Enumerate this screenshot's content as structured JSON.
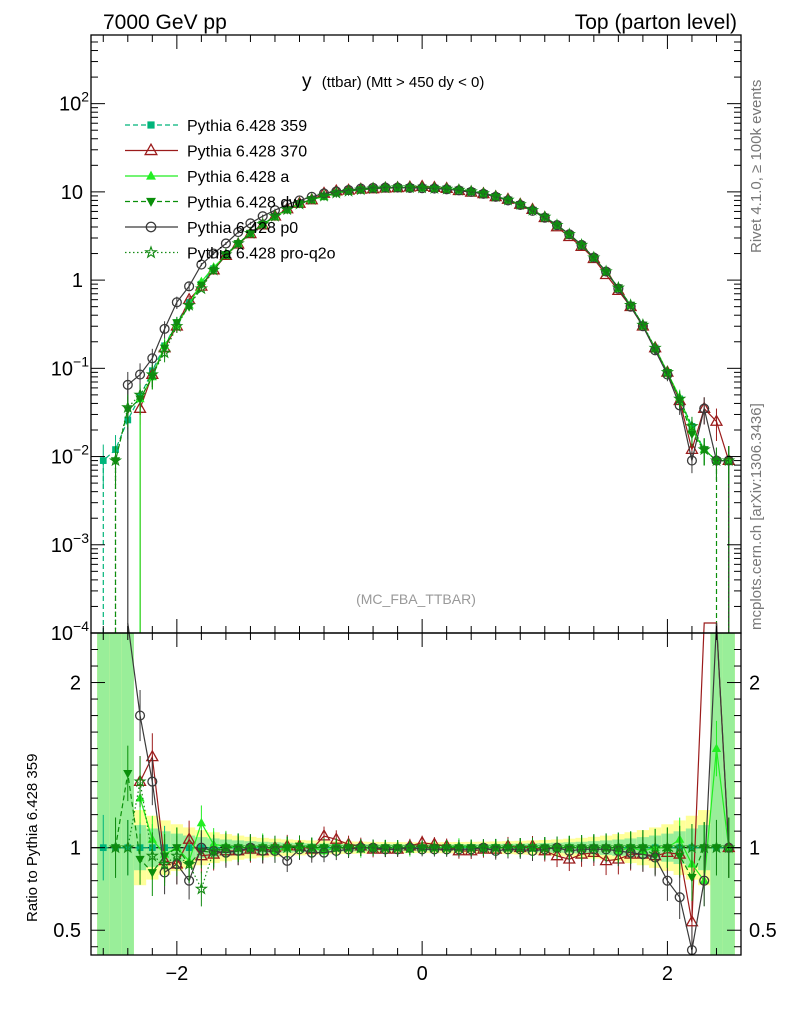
{
  "header": {
    "left": "7000 GeV pp",
    "right": "Top (parton level)"
  },
  "side_text": {
    "rivet": "Rivet 4.1.0, ≥ 100k events",
    "source": "mcplots.cern.ch [arXiv:1306.3436]"
  },
  "chart_data": {
    "type": "line",
    "title_main": "y",
    "title_sub": "(ttbar) (Mtt > 450 dy < 0)",
    "watermark": "(MC_FBA_TTBAR)",
    "xlabel": "",
    "x_ticks": [
      "−2",
      "0",
      "2"
    ],
    "xlim": [
      -2.7,
      2.6
    ],
    "upper": {
      "yscale": "log",
      "ylim": [
        0.0001,
        600
      ],
      "y_ticks": [
        {
          "value": 100,
          "label": "10",
          "exp": "2"
        },
        {
          "value": 10,
          "label": "10",
          "exp": ""
        },
        {
          "value": 1,
          "label": "1",
          "exp": ""
        },
        {
          "value": 0.1,
          "label": "10",
          "exp": "−1"
        },
        {
          "value": 0.01,
          "label": "10",
          "exp": "−2"
        },
        {
          "value": 0.001,
          "label": "10",
          "exp": "−3"
        },
        {
          "value": 0.0001,
          "label": "10",
          "exp": "−4"
        }
      ]
    },
    "ratio": {
      "ylabel": "Ratio to Pythia 6.428 359",
      "ylim": [
        0.35,
        2.3
      ],
      "y_ticks": [
        {
          "value": 0.5,
          "label": "0.5"
        },
        {
          "value": 1,
          "label": "1"
        },
        {
          "value": 2,
          "label": "2"
        }
      ]
    },
    "series": [
      {
        "name": "Pythia 6.428 359",
        "color": "#00b47a",
        "dash": "5,3",
        "marker": "square",
        "x": [
          -2.6,
          -2.5,
          -2.4,
          -2.3,
          -2.2,
          -2.1,
          -2.0,
          -1.9,
          -1.8,
          -1.7,
          -1.6,
          -1.5,
          -1.4,
          -1.3,
          -1.2,
          -1.1,
          -1.0,
          -0.9,
          -0.8,
          -0.7,
          -0.6,
          -0.5,
          -0.4,
          -0.3,
          -0.2,
          -0.1,
          0.0,
          0.1,
          0.2,
          0.3,
          0.4,
          0.5,
          0.6,
          0.7,
          0.8,
          0.9,
          1.0,
          1.1,
          1.2,
          1.3,
          1.4,
          1.5,
          1.6,
          1.7,
          1.8,
          1.9,
          2.0,
          2.1,
          2.2,
          2.3,
          2.4,
          2.5
        ],
        "values": [
          0.009,
          0.012,
          0.026,
          0.048,
          0.094,
          0.18,
          0.33,
          0.56,
          0.9,
          1.35,
          1.95,
          2.6,
          3.4,
          4.3,
          5.3,
          6.3,
          7.3,
          8.2,
          9.0,
          9.7,
          10.2,
          10.6,
          10.9,
          11.1,
          11.2,
          11.2,
          11.1,
          11.0,
          10.8,
          10.5,
          10.1,
          9.6,
          8.9,
          8.1,
          7.2,
          6.2,
          5.2,
          4.2,
          3.3,
          2.5,
          1.8,
          1.25,
          0.82,
          0.52,
          0.31,
          0.17,
          0.09,
          0.045,
          0.022,
          0.012,
          0.009,
          0.009
        ],
        "ratio": [
          1,
          1,
          1,
          1,
          1,
          1,
          1,
          1,
          1,
          1,
          1,
          1,
          1,
          1,
          1,
          1,
          1,
          1,
          1,
          1,
          1,
          1,
          1,
          1,
          1,
          1,
          1,
          1,
          1,
          1,
          1,
          1,
          1,
          1,
          1,
          1,
          1,
          1,
          1,
          1,
          1,
          1,
          1,
          1,
          1,
          1,
          1,
          1,
          1,
          1,
          1,
          1
        ]
      },
      {
        "name": "Pythia 6.428 370",
        "color": "#9b1b1b",
        "dash": "",
        "marker": "triangle-open",
        "x": [
          -2.3,
          -2.2,
          -2.1,
          -2.0,
          -1.9,
          -1.8,
          -1.7,
          -1.6,
          -1.5,
          -1.4,
          -1.3,
          -1.2,
          -1.1,
          -1.0,
          -0.9,
          -0.8,
          -0.7,
          -0.6,
          -0.5,
          -0.4,
          -0.3,
          -0.2,
          -0.1,
          0.0,
          0.1,
          0.2,
          0.3,
          0.4,
          0.5,
          0.6,
          0.7,
          0.8,
          0.9,
          1.0,
          1.1,
          1.2,
          1.3,
          1.4,
          1.5,
          1.6,
          1.7,
          1.8,
          1.9,
          2.0,
          2.1,
          2.2,
          2.3,
          2.4,
          2.5
        ],
        "values": [
          0.035,
          0.085,
          0.17,
          0.3,
          0.6,
          0.85,
          1.3,
          1.9,
          2.55,
          3.35,
          4.2,
          5.3,
          6.4,
          7.4,
          8.1,
          9.6,
          10.2,
          10.4,
          10.7,
          10.8,
          11.0,
          11.1,
          11.3,
          11.5,
          11.2,
          10.9,
          10.3,
          9.9,
          9.5,
          8.8,
          8.2,
          7.2,
          6.3,
          5.1,
          4.0,
          3.1,
          2.4,
          1.75,
          1.15,
          0.76,
          0.5,
          0.3,
          0.17,
          0.09,
          0.043,
          0.012,
          0.035,
          0.025,
          0.009
        ],
        "ratio": [
          1.4,
          1.55,
          0.92,
          0.9,
          1.05,
          0.95,
          0.96,
          0.98,
          0.98,
          0.99,
          0.98,
          1.0,
          1.01,
          1.01,
          0.99,
          1.07,
          1.05,
          1.02,
          1.01,
          0.99,
          0.99,
          0.99,
          1.01,
          1.03,
          1.02,
          1.01,
          0.98,
          0.98,
          0.99,
          0.99,
          1.01,
          1.0,
          1.01,
          0.98,
          0.95,
          0.93,
          0.96,
          0.97,
          0.92,
          0.93,
          0.96,
          0.96,
          0.95,
          0.97,
          0.96,
          0.55,
          2.9,
          2.8,
          1.0
        ]
      },
      {
        "name": "Pythia 6.428 a",
        "color": "#22ee22",
        "dash": "",
        "marker": "triangle",
        "x": [
          -2.3,
          -2.2,
          -2.1,
          -2.0,
          -1.9,
          -1.8,
          -1.7,
          -1.6,
          -1.5,
          -1.4,
          -1.3,
          -1.2,
          -1.1,
          -1.0,
          -0.9,
          -0.8,
          -0.7,
          -0.6,
          -0.5,
          -0.4,
          -0.3,
          -0.2,
          -0.1,
          0.0,
          0.1,
          0.2,
          0.3,
          0.4,
          0.5,
          0.6,
          0.7,
          0.8,
          0.9,
          1.0,
          1.1,
          1.2,
          1.3,
          1.4,
          1.5,
          1.6,
          1.7,
          1.8,
          1.9,
          2.0,
          2.1,
          2.2,
          2.3,
          2.4,
          2.5
        ],
        "values": [
          0.045,
          0.08,
          0.18,
          0.31,
          0.52,
          0.96,
          1.4,
          1.9,
          2.6,
          3.4,
          4.3,
          5.2,
          6.3,
          7.4,
          8.2,
          8.8,
          9.7,
          10.2,
          10.5,
          10.9,
          11.1,
          11.2,
          11.1,
          11.1,
          11.0,
          10.8,
          10.6,
          10.1,
          9.6,
          8.9,
          8.1,
          7.2,
          6.2,
          5.2,
          4.2,
          3.3,
          2.5,
          1.8,
          1.25,
          0.8,
          0.52,
          0.3,
          0.17,
          0.09,
          0.047,
          0.02,
          0.012,
          0.009,
          0.009
        ],
        "ratio": [
          1.3,
          1.05,
          0.96,
          1.0,
          0.92,
          1.15,
          1.02,
          1.01,
          1.0,
          1.0,
          1.01,
          0.98,
          1.0,
          1.01,
          1.0,
          0.98,
          1.0,
          1.0,
          0.99,
          1.0,
          1.0,
          1.0,
          0.99,
          1.0,
          1.0,
          1.0,
          1.01,
          1.0,
          1.0,
          1.0,
          1.0,
          1.0,
          1.0,
          1.0,
          1.0,
          1.0,
          1.0,
          1.0,
          1.0,
          0.98,
          1.0,
          0.98,
          1.0,
          1.0,
          1.05,
          0.9,
          0.8,
          1.6,
          1.0
        ]
      },
      {
        "name": "Pythia 6.428 dw",
        "color": "#0a8f0a",
        "dash": "5,3",
        "marker": "triangle-down",
        "x": [
          -2.5,
          -2.4,
          -2.3,
          -2.2,
          -2.1,
          -2.0,
          -1.9,
          -1.8,
          -1.7,
          -1.6,
          -1.5,
          -1.4,
          -1.3,
          -1.2,
          -1.1,
          -1.0,
          -0.9,
          -0.8,
          -0.7,
          -0.6,
          -0.5,
          -0.4,
          -0.3,
          -0.2,
          -0.1,
          0.0,
          0.1,
          0.2,
          0.3,
          0.4,
          0.5,
          0.6,
          0.7,
          0.8,
          0.9,
          1.0,
          1.1,
          1.2,
          1.3,
          1.4,
          1.5,
          1.6,
          1.7,
          1.8,
          1.9,
          2.0,
          2.1,
          2.2,
          2.3,
          2.4
        ],
        "values": [
          0.009,
          0.034,
          0.045,
          0.08,
          0.17,
          0.33,
          0.5,
          0.88,
          1.3,
          1.95,
          2.6,
          3.4,
          4.3,
          5.3,
          6.3,
          7.4,
          8.2,
          9.0,
          9.7,
          10.2,
          10.6,
          10.9,
          11.1,
          11.2,
          11.2,
          11.1,
          11.0,
          10.8,
          10.5,
          10.1,
          9.6,
          8.9,
          8.1,
          7.2,
          6.2,
          5.2,
          4.2,
          3.3,
          2.5,
          1.8,
          1.25,
          0.82,
          0.52,
          0.31,
          0.16,
          0.09,
          0.043,
          0.018,
          0.012,
          0.009
        ],
        "ratio": [
          1.0,
          1.45,
          0.93,
          0.85,
          0.95,
          1.0,
          0.9,
          0.98,
          0.97,
          1.0,
          1.0,
          1.0,
          1.0,
          1.0,
          1.0,
          1.01,
          1.0,
          1.0,
          1.0,
          1.0,
          1.0,
          1.0,
          1.0,
          1.0,
          1.0,
          1.0,
          1.0,
          1.0,
          1.0,
          1.0,
          1.0,
          1.0,
          1.0,
          1.0,
          1.0,
          1.0,
          1.0,
          1.0,
          1.0,
          1.0,
          1.0,
          1.0,
          1.0,
          1.0,
          0.95,
          1.0,
          0.95,
          0.82,
          1.0,
          1.0
        ]
      },
      {
        "name": "Pythia 6.428 p0",
        "color": "#3a3a3a",
        "dash": "",
        "marker": "circle-open",
        "x": [
          -2.4,
          -2.3,
          -2.2,
          -2.1,
          -2.0,
          -1.9,
          -1.8,
          -1.7,
          -1.6,
          -1.5,
          -1.4,
          -1.3,
          -1.2,
          -1.1,
          -1.0,
          -0.9,
          -0.8,
          -0.7,
          -0.6,
          -0.5,
          -0.4,
          -0.3,
          -0.2,
          -0.1,
          0.0,
          0.1,
          0.2,
          0.3,
          0.4,
          0.5,
          0.6,
          0.7,
          0.8,
          0.9,
          1.0,
          1.1,
          1.2,
          1.3,
          1.4,
          1.5,
          1.6,
          1.7,
          1.8,
          1.9,
          2.0,
          2.1,
          2.2,
          2.3,
          2.4,
          2.5
        ],
        "values": [
          0.065,
          0.085,
          0.13,
          0.28,
          0.56,
          0.85,
          1.5,
          2.0,
          2.6,
          3.5,
          4.4,
          5.3,
          6.2,
          7.2,
          8.0,
          8.8,
          9.6,
          10.1,
          10.5,
          10.9,
          11.1,
          11.2,
          11.2,
          11.1,
          11.0,
          10.9,
          10.7,
          10.4,
          10.0,
          9.5,
          8.8,
          8.0,
          7.1,
          6.1,
          5.1,
          4.2,
          3.3,
          2.5,
          1.8,
          1.25,
          0.8,
          0.5,
          0.3,
          0.16,
          0.085,
          0.038,
          0.009,
          0.035,
          0.009,
          0.009
        ],
        "ratio": [
          2.4,
          1.8,
          1.4,
          0.85,
          0.9,
          0.8,
          1.0,
          0.98,
          0.97,
          0.98,
          1.0,
          0.98,
          0.98,
          0.92,
          0.99,
          0.97,
          0.97,
          0.98,
          0.99,
          1.0,
          1.0,
          0.99,
          0.99,
          1.0,
          0.99,
          0.99,
          0.99,
          0.99,
          0.99,
          1.0,
          0.98,
          0.99,
          0.99,
          0.98,
          0.99,
          1.0,
          0.98,
          0.99,
          0.99,
          0.99,
          0.98,
          0.97,
          0.96,
          0.94,
          0.8,
          0.7,
          0.38,
          0.8,
          2.7,
          1.0
        ]
      },
      {
        "name": "Pythia 6.428 pro-q2o",
        "color": "#138a13",
        "dash": "1.5,2.5",
        "marker": "star",
        "x": [
          -2.5,
          -2.4,
          -2.3,
          -2.2,
          -2.1,
          -2.0,
          -1.9,
          -1.8,
          -1.7,
          -1.6,
          -1.5,
          -1.4,
          -1.3,
          -1.2,
          -1.1,
          -1.0,
          -0.9,
          -0.8,
          -0.7,
          -0.6,
          -0.5,
          -0.4,
          -0.3,
          -0.2,
          -0.1,
          0.0,
          0.1,
          0.2,
          0.3,
          0.4,
          0.5,
          0.6,
          0.7,
          0.8,
          0.9,
          1.0,
          1.1,
          1.2,
          1.3,
          1.4,
          1.5,
          1.6,
          1.7,
          1.8,
          1.9,
          2.0,
          2.1,
          2.2,
          2.3,
          2.4,
          2.5
        ],
        "values": [
          0.009,
          0.036,
          0.05,
          0.085,
          0.15,
          0.3,
          0.52,
          0.8,
          1.3,
          1.95,
          2.6,
          3.4,
          4.3,
          5.3,
          6.3,
          7.3,
          8.2,
          9.0,
          9.7,
          10.2,
          10.6,
          10.9,
          11.1,
          11.2,
          11.2,
          11.1,
          11.0,
          10.8,
          10.5,
          10.1,
          9.6,
          8.9,
          8.1,
          7.2,
          6.2,
          5.2,
          4.2,
          3.3,
          2.5,
          1.8,
          1.25,
          0.82,
          0.52,
          0.31,
          0.17,
          0.09,
          0.045,
          0.022,
          0.012,
          0.009,
          0.009
        ],
        "ratio": [
          1.0,
          1.0,
          1.4,
          0.95,
          0.9,
          0.95,
          0.9,
          0.75,
          0.98,
          1.0,
          1.0,
          1.0,
          1.0,
          1.0,
          1.0,
          1.0,
          1.0,
          1.0,
          1.0,
          1.0,
          1.0,
          1.0,
          1.0,
          1.0,
          1.0,
          1.0,
          1.0,
          1.0,
          1.0,
          1.0,
          1.0,
          1.0,
          1.0,
          1.0,
          1.0,
          1.0,
          1.0,
          1.0,
          1.0,
          1.0,
          1.0,
          1.0,
          1.0,
          1.0,
          1.0,
          1.0,
          1.0,
          1.0,
          1.0,
          1.0,
          1.0
        ]
      }
    ]
  }
}
